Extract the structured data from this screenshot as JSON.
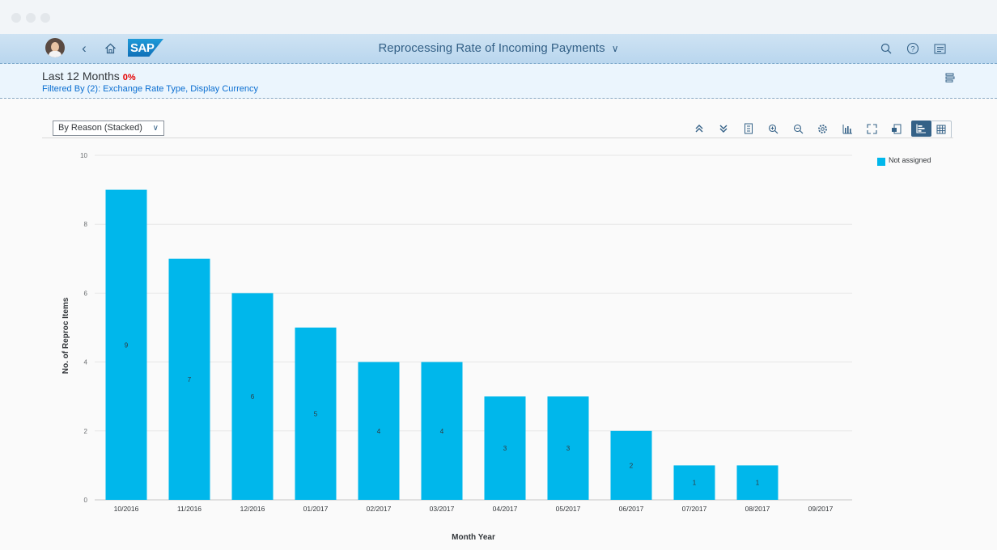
{
  "shell": {
    "title": "Reprocessing Rate of Incoming Payments",
    "title_chevron": "∨",
    "logo_text": "SAP"
  },
  "header": {
    "range_title": "Last 12 Months",
    "range_value": "0%",
    "filter_text": "Filtered By (2): Exchange Rate Type, Display Currency"
  },
  "toolbar": {
    "view_select_value": "By Reason (Stacked)",
    "icons": [
      "collapse-all-icon",
      "expand-all-icon",
      "legend-icon",
      "zoom-in-icon",
      "zoom-out-icon",
      "settings-icon",
      "chart-type-icon",
      "fullscreen-icon",
      "export-icon",
      "chart-view-icon",
      "table-view-icon"
    ]
  },
  "colors": {
    "bar": "#00b7eb",
    "accent": "#346187",
    "negative": "#e50000"
  },
  "chart_data": {
    "type": "bar",
    "categories": [
      "10/2016",
      "11/2016",
      "12/2016",
      "01/2017",
      "02/2017",
      "03/2017",
      "04/2017",
      "05/2017",
      "06/2017",
      "07/2017",
      "08/2017",
      "09/2017"
    ],
    "series": [
      {
        "name": "Not assigned",
        "values": [
          9,
          7,
          6,
          5,
          4,
          4,
          3,
          3,
          2,
          1,
          1,
          0
        ]
      }
    ],
    "data_labels": [
      "9",
      "7",
      "6",
      "5",
      "4",
      "4",
      "3",
      "3",
      "2",
      "1",
      "1",
      ""
    ],
    "xlabel": "Month Year",
    "ylabel": "No. of Reproc Items",
    "ylim": [
      0,
      10
    ],
    "yticks": [
      0,
      2,
      4,
      6,
      8,
      10
    ],
    "grid": true,
    "legend": "top-right"
  }
}
